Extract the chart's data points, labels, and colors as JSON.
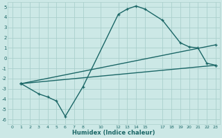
{
  "xlabel": "Humidex (Indice chaleur)",
  "background_color": "#cce8e6",
  "grid_color": "#aacfcc",
  "line_color": "#1a6666",
  "xlim": [
    -0.5,
    23.5
  ],
  "ylim": [
    -6.5,
    5.5
  ],
  "xticks": [
    0,
    1,
    2,
    3,
    4,
    5,
    6,
    7,
    8,
    10,
    12,
    13,
    14,
    15,
    17,
    18,
    19,
    20,
    21,
    22,
    23
  ],
  "yticks": [
    -6,
    -5,
    -4,
    -3,
    -2,
    -1,
    0,
    1,
    2,
    3,
    4,
    5
  ],
  "line1_x": [
    1,
    3,
    4,
    5,
    6,
    8,
    12,
    13,
    14,
    15,
    17,
    19,
    20,
    21,
    22,
    23
  ],
  "line1_y": [
    -2.5,
    -3.5,
    -3.8,
    -4.2,
    -5.7,
    -2.8,
    4.3,
    4.8,
    5.1,
    4.8,
    3.7,
    1.5,
    1.1,
    1.0,
    -0.5,
    -0.7
  ],
  "line2_x": [
    1,
    23
  ],
  "line2_y": [
    -2.5,
    -0.7
  ],
  "line3_x": [
    1,
    23
  ],
  "line3_y": [
    -2.5,
    1.3
  ],
  "marker_size": 3.5,
  "line_width": 1.0
}
